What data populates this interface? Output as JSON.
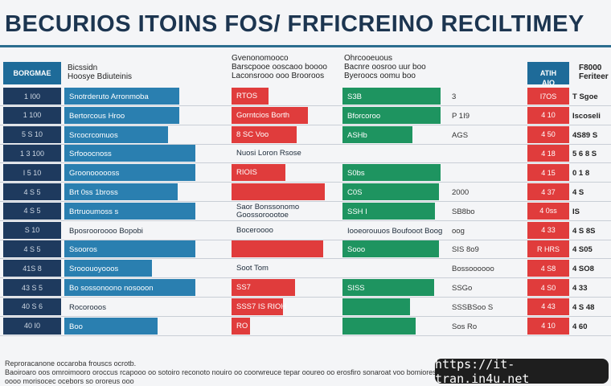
{
  "title": "BECURIOS ITOINS FOS/ FRFICREINO RECILTIMEY",
  "watermark": "https://it-tran.in4u.net",
  "footer": "Reproracanone occaroba frouscs ocrotb.\nBaoiroaro oos omroimooro oroccus rcapooo oo sotoiro reconoto nouiro oo coorwreuce tepar ooureo oo erosfiro sonaroat voo bomiores oooo morisocec ocebors so ororeus ooo",
  "headers": {
    "left_box": "BORGMAE",
    "col1": "Bicssidn\nHoosye Bdiuteinis",
    "col2": "Gvenonomooco\nBarscpooe ooscaoo boooo\nLaconsrooo ooo Brooroos",
    "col3": "Ohrcooeuous\nBacnre oosroo uur boo\nByeroocs oomu boo",
    "right_box": "ATIH\nAIO",
    "col4": "F8000\nFeriteer"
  },
  "colors": {
    "blue": "#2a7fb0",
    "red": "#e03c3c",
    "green": "#1e9460",
    "navy": "#1e3a5e",
    "grey": "#2f3c4c"
  },
  "chart_data": {
    "type": "bar",
    "rows": [
      {
        "id": "1 I00",
        "label": "Snotrderuto Arronmoba",
        "blue": 0.84,
        "red": 0.4,
        "red_label": "RTOS",
        "green": 0.98,
        "green_label": "S3B",
        "green_val": "3",
        "red_id": "I7OS",
        "right": "T Sgoe"
      },
      {
        "id": "1 100",
        "label": "Bertorcous Hroo",
        "blue": 0.84,
        "red": 0.82,
        "red_label": "Gorntcios Borth",
        "green": 0.98,
        "green_label": "Bforcoroo",
        "green_val": "P 1I9",
        "red_id": "4 10",
        "right": "Iscoseli"
      },
      {
        "id": "5 S 10",
        "label": "Srcocrcomuos",
        "blue": 0.76,
        "red": 0.7,
        "red_label": "8 SC Voo",
        "green": 0.7,
        "green_label": "ASHb",
        "green_val": "AGS",
        "red_id": "4 50",
        "right": "4S89 S"
      },
      {
        "id": "1 3 100",
        "label": "Srfooocnoss",
        "blue": 0.96,
        "red": 0.0,
        "red_label": "Nuosi Loron Rsose",
        "green": 0.0,
        "green_label": "",
        "green_val": "",
        "red_id": "4 18",
        "right": "5 6 8 S"
      },
      {
        "id": "I 5 10",
        "label": "Groonoooooss",
        "blue": 0.96,
        "red": 0.58,
        "red_label": "RIOIS",
        "green": 0.98,
        "green_label": "S0bs",
        "green_val": "",
        "red_id": "4 15",
        "right": "0 1 8"
      },
      {
        "id": "4 S 5",
        "label": "Brt 0ss 1bross",
        "blue": 0.83,
        "red": 1.0,
        "red_label": "",
        "green": 0.97,
        "green_label": "C0S",
        "green_val": "2000",
        "red_id": "4 37",
        "right": "4 S"
      },
      {
        "id": "4 S 5",
        "label": "Brtruoumoss s",
        "blue": 0.96,
        "red": 0.0,
        "red_label": "Saor Bonssonomo\nGoossoroootoe",
        "green": 0.93,
        "green_label": "SSH I",
        "green_val": "SB8bo",
        "red_id": "4 0ss",
        "right": "IS"
      },
      {
        "id": "S 10",
        "label": "Bposrooroooo Bopobi",
        "blue": 0.0,
        "red": 0.0,
        "red_label": "Boceroooo",
        "green": 0.0,
        "green_label": "Iooeorouuos Boufooot Boog",
        "green_val": "oog",
        "red_id": "4 33",
        "right": "4 S 8S"
      },
      {
        "id": "4 S 5",
        "label": "Ssooros",
        "blue": 0.96,
        "red": 0.98,
        "red_label": "",
        "green": 0.97,
        "green_label": "Sooo",
        "green_val": "SIS 8o9",
        "red_id": "R HRS",
        "right": "4 S05"
      },
      {
        "id": "41S 8",
        "label": "Srooouoyooos",
        "blue": 0.64,
        "red": 0.0,
        "red_label": "Soot Tom",
        "green": 0.0,
        "green_label": "",
        "green_val": "Bossoooooo",
        "red_id": "4 S8",
        "right": "4 SO8"
      },
      {
        "id": "43 S 5",
        "label": "Bo sossonoono nosooon",
        "blue": 0.96,
        "red": 0.68,
        "red_label": "SS7",
        "green": 0.92,
        "green_label": "SISS",
        "green_val": "SSGo",
        "red_id": "4 S0",
        "right": "4 33"
      },
      {
        "id": "40 S 6",
        "label": "Rocorooos",
        "blue": 0.0,
        "red": 0.55,
        "red_label": "SSS7 IS RIOH",
        "green": 0.68,
        "green_label": "",
        "green_val": "SSSBSoo S",
        "red_id": "4 43",
        "right": "4 S 48"
      },
      {
        "id": "40 I0",
        "label": "Boo",
        "blue": 0.68,
        "red": 0.2,
        "red_label": "RO",
        "green": 0.73,
        "green_label": "",
        "green_val": "Sos Ro",
        "red_id": "4 10",
        "right": "4 60"
      }
    ]
  }
}
